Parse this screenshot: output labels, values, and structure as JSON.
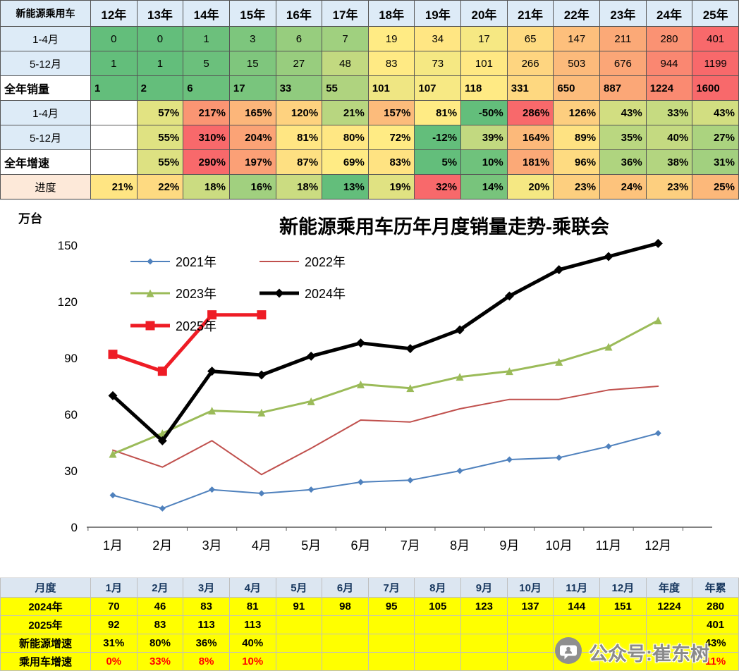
{
  "top_table": {
    "corner_label": "新能源乘用车",
    "years": [
      "12年",
      "13年",
      "14年",
      "15年",
      "16年",
      "17年",
      "18年",
      "19年",
      "20年",
      "21年",
      "22年",
      "23年",
      "24年",
      "25年"
    ],
    "rows": [
      {
        "label": "1-4月",
        "label_bg": "#DDEBF7",
        "label_bold": false,
        "label_align": "center",
        "align": "center",
        "bold": false,
        "cells": [
          "0",
          "0",
          "1",
          "3",
          "6",
          "7",
          "19",
          "34",
          "17",
          "65",
          "147",
          "211",
          "280",
          "401"
        ],
        "colors": [
          "#63BE7B",
          "#63BE7B",
          "#6CC07C",
          "#7DC67D",
          "#97CD7E",
          "#A0D07F",
          "#FFEB84",
          "#FFE683",
          "#F6E883",
          "#FEDB81",
          "#FDBF7C",
          "#FBA977",
          "#FA9273",
          "#F8696B"
        ]
      },
      {
        "label": "5-12月",
        "label_bg": "#DDEBF7",
        "label_bold": false,
        "label_align": "center",
        "align": "center",
        "bold": false,
        "cells": [
          "1",
          "1",
          "5",
          "15",
          "27",
          "48",
          "83",
          "73",
          "101",
          "266",
          "503",
          "676",
          "944",
          "1199"
        ],
        "colors": [
          "#63BE7B",
          "#63BE7B",
          "#6BC07C",
          "#7FC67D",
          "#98CD7E",
          "#C2D980",
          "#FFEA84",
          "#F5E883",
          "#FFE883",
          "#FED580",
          "#FCBA7B",
          "#FBA677",
          "#FA8771",
          "#F8696B"
        ]
      },
      {
        "label": "全年销量",
        "label_bg": "#FFFFFF",
        "label_bold": true,
        "label_align": "left",
        "align": "left",
        "bold": true,
        "cells": [
          "1",
          "2",
          "6",
          "17",
          "33",
          "55",
          "101",
          "107",
          "118",
          "331",
          "650",
          "887",
          "1224",
          "1600"
        ],
        "colors": [
          "#63BE7B",
          "#64BE7B",
          "#6AC07C",
          "#79C57D",
          "#90CB7E",
          "#AFD37F",
          "#EFE683",
          "#F7E984",
          "#FFEA84",
          "#FED880",
          "#FCBC7B",
          "#FBA777",
          "#FA8A71",
          "#F8696B"
        ]
      },
      {
        "label": "1-4月",
        "label_bg": "#DDEBF7",
        "label_bold": false,
        "label_align": "center",
        "align": "right",
        "bold": true,
        "cells": [
          "",
          "57%",
          "217%",
          "165%",
          "120%",
          "21%",
          "157%",
          "81%",
          "-50%",
          "286%",
          "126%",
          "43%",
          "33%",
          "43%"
        ],
        "colors": [
          "#FFFFFF",
          "#E2E382",
          "#FA9573",
          "#FCB67A",
          "#FED27F",
          "#B8D680",
          "#FCBB7B",
          "#FFEB84",
          "#63BE7B",
          "#F8696B",
          "#FDCE7F",
          "#D2DE81",
          "#C6DB81",
          "#D2DE81"
        ]
      },
      {
        "label": "5-12月",
        "label_bg": "#DDEBF7",
        "label_bold": false,
        "label_align": "center",
        "align": "right",
        "bold": true,
        "cells": [
          "",
          "55%",
          "310%",
          "204%",
          "81%",
          "80%",
          "72%",
          "-12%",
          "39%",
          "164%",
          "89%",
          "35%",
          "40%",
          "27%"
        ],
        "colors": [
          "#FFFFFF",
          "#DFE282",
          "#F8696B",
          "#FBA376",
          "#FFE683",
          "#FFE783",
          "#FFEB84",
          "#63BE7B",
          "#C2D980",
          "#FCB97A",
          "#FEE282",
          "#BAD780",
          "#C4DA81",
          "#ABD37F"
        ]
      },
      {
        "label": "全年增速",
        "label_bg": "#FFFFFF",
        "label_bold": true,
        "label_align": "left",
        "align": "right",
        "bold": true,
        "cells": [
          "",
          "55%",
          "290%",
          "197%",
          "87%",
          "69%",
          "83%",
          "5%",
          "10%",
          "181%",
          "96%",
          "36%",
          "38%",
          "31%"
        ],
        "colors": [
          "#FFFFFF",
          "#DDE182",
          "#F8696B",
          "#FBA076",
          "#FEE082",
          "#FFEB84",
          "#FFE382",
          "#63BE7B",
          "#6FC27C",
          "#FBA977",
          "#FEDB81",
          "#AFD47F",
          "#B3D580",
          "#A2D07F"
        ]
      },
      {
        "label": "进度",
        "label_bg": "#FDE9D9",
        "label_bold": false,
        "label_align": "center",
        "align": "right",
        "bold": true,
        "cells": [
          "21%",
          "22%",
          "18%",
          "16%",
          "18%",
          "13%",
          "19%",
          "32%",
          "14%",
          "20%",
          "23%",
          "24%",
          "23%",
          "25%"
        ],
        "colors": [
          "#FFE583",
          "#FEDA81",
          "#CBDC81",
          "#A1D07F",
          "#CBDC81",
          "#63BE7B",
          "#E0E282",
          "#F8696B",
          "#78C47C",
          "#F5E883",
          "#FDCF7F",
          "#FDC37C",
          "#FDCF7F",
          "#FCB87A"
        ]
      }
    ]
  },
  "chart_data": {
    "type": "line",
    "title": "新能源乘用车历年月度销量走势-乘联会",
    "ylabel": "万台",
    "x_labels": [
      "1月",
      "2月",
      "3月",
      "4月",
      "5月",
      "6月",
      "7月",
      "8月",
      "9月",
      "10月",
      "11月",
      "12月"
    ],
    "ylim": [
      0,
      150
    ],
    "yticks": [
      0,
      30,
      60,
      90,
      120,
      150
    ],
    "grid": false,
    "legend_position": "inside-top-left",
    "series": [
      {
        "name": "2021年",
        "color": "#4F81BD",
        "marker": "diamond",
        "width": 2,
        "values": [
          17,
          10,
          20,
          18,
          20,
          24,
          25,
          30,
          36,
          37,
          43,
          50
        ]
      },
      {
        "name": "2022年",
        "color": "#C0504D",
        "marker": "none",
        "width": 2,
        "values": [
          41,
          32,
          46,
          28,
          42,
          57,
          56,
          63,
          68,
          68,
          73,
          75
        ]
      },
      {
        "name": "2023年",
        "color": "#9BBB59",
        "marker": "triangle",
        "width": 3,
        "values": [
          39,
          50,
          62,
          61,
          67,
          76,
          74,
          80,
          83,
          88,
          96,
          110
        ]
      },
      {
        "name": "2024年",
        "color": "#000000",
        "marker": "diamond",
        "width": 5,
        "values": [
          70,
          46,
          83,
          81,
          91,
          98,
          95,
          105,
          123,
          137,
          144,
          151
        ]
      },
      {
        "name": "2025年",
        "color": "#EE1C25",
        "marker": "square",
        "width": 5,
        "values": [
          92,
          83,
          113,
          113
        ]
      }
    ]
  },
  "bottom_table": {
    "header": [
      "月度",
      "1月",
      "2月",
      "3月",
      "4月",
      "5月",
      "6月",
      "7月",
      "8月",
      "9月",
      "10月",
      "11月",
      "12月",
      "年度",
      "年累"
    ],
    "rows": [
      {
        "label": "2024年",
        "red": false,
        "cells": [
          "70",
          "46",
          "83",
          "81",
          "91",
          "98",
          "95",
          "105",
          "123",
          "137",
          "144",
          "151",
          "1224",
          "280"
        ]
      },
      {
        "label": "2025年",
        "red": false,
        "cells": [
          "92",
          "83",
          "113",
          "113",
          "",
          "",
          "",
          "",
          "",
          "",
          "",
          "",
          "",
          "401"
        ]
      },
      {
        "label": "新能源增速",
        "red": false,
        "cells": [
          "31%",
          "80%",
          "36%",
          "40%",
          "",
          "",
          "",
          "",
          "",
          "",
          "",
          "",
          "",
          "43%"
        ]
      },
      {
        "label": "乘用车增速",
        "red": true,
        "cells": [
          "0%",
          "33%",
          "8%",
          "10%",
          "",
          "",
          "",
          "",
          "",
          "",
          "",
          "",
          "",
          "11%"
        ]
      }
    ]
  },
  "watermark": {
    "text": "公众号:崔东树"
  }
}
